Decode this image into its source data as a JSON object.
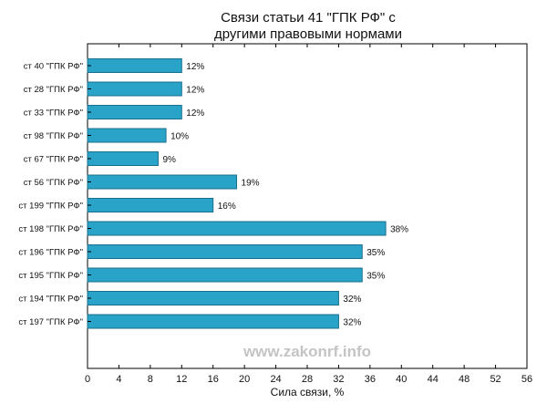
{
  "chart_data": {
    "type": "bar",
    "orientation": "horizontal",
    "title_lines": [
      "Связи статьи 41 \"ГПК РФ\" с",
      "другими правовыми нормами"
    ],
    "xlabel": "Сила связи, %",
    "ylabel": "",
    "xlim": [
      0,
      56
    ],
    "xticks": [
      0,
      4,
      8,
      12,
      16,
      20,
      24,
      28,
      32,
      36,
      40,
      44,
      48,
      52,
      56
    ],
    "grid": false,
    "categories": [
      "ст 40 \"ГПК РФ\"",
      "ст 28 \"ГПК РФ\"",
      "ст 33 \"ГПК РФ\"",
      "ст 98 \"ГПК РФ\"",
      "ст 67 \"ГПК РФ\"",
      "ст 56 \"ГПК РФ\"",
      "ст 199 \"ГПК РФ\"",
      "ст 198 \"ГПК РФ\"",
      "ст 196 \"ГПК РФ\"",
      "ст 195 \"ГПК РФ\"",
      "ст 194 \"ГПК РФ\"",
      "ст 197 \"ГПК РФ\""
    ],
    "values": [
      12,
      12,
      12,
      10,
      9,
      19,
      16,
      38,
      35,
      35,
      32,
      32
    ],
    "value_labels": [
      "12%",
      "12%",
      "12%",
      "10%",
      "9%",
      "19%",
      "16%",
      "38%",
      "35%",
      "35%",
      "32%",
      "32%"
    ],
    "bar_color": "#2aa3c9",
    "bar_edge_color": "#1a6f8c"
  },
  "watermark": "www.zakonrf.info"
}
